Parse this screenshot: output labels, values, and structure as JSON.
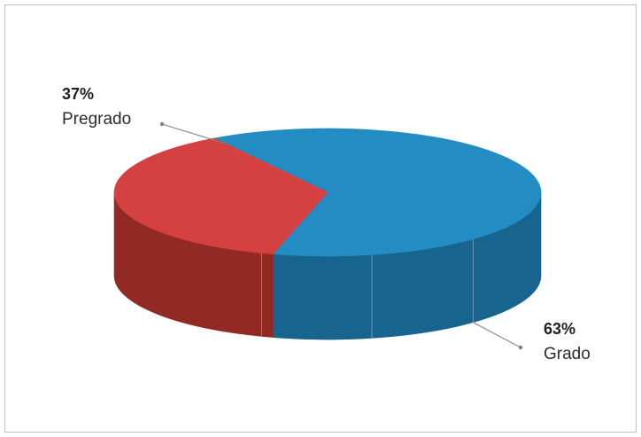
{
  "chart_data": {
    "type": "pie",
    "style": "3d",
    "title": "",
    "slices": [
      {
        "label": "Grado",
        "value": 63,
        "value_label": "63%",
        "color": "#238CC2",
        "side_color": "#17648E"
      },
      {
        "label": "Pregrado",
        "value": 37,
        "value_label": "37%",
        "color": "#D44140",
        "side_color": "#922925"
      }
    ],
    "legend": "none"
  }
}
